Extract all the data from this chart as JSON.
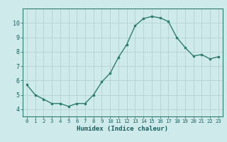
{
  "x": [
    0,
    1,
    2,
    3,
    4,
    5,
    6,
    7,
    8,
    9,
    10,
    11,
    12,
    13,
    14,
    15,
    16,
    17,
    18,
    19,
    20,
    21,
    22,
    23
  ],
  "y": [
    5.7,
    5.0,
    4.7,
    4.4,
    4.4,
    4.2,
    4.4,
    4.4,
    5.0,
    5.9,
    6.5,
    7.6,
    8.5,
    9.8,
    10.3,
    10.45,
    10.35,
    10.1,
    9.0,
    8.3,
    7.7,
    7.8,
    7.5,
    7.65
  ],
  "xlim": [
    -0.5,
    23.5
  ],
  "ylim": [
    3.5,
    11.0
  ],
  "yticks": [
    4,
    5,
    6,
    7,
    8,
    9,
    10
  ],
  "xticks": [
    0,
    1,
    2,
    3,
    4,
    5,
    6,
    7,
    8,
    9,
    10,
    11,
    12,
    13,
    14,
    15,
    16,
    17,
    18,
    19,
    20,
    21,
    22,
    23
  ],
  "xlabel": "Humidex (Indice chaleur)",
  "line_color": "#2e7d6e",
  "marker_color": "#2e7d6e",
  "bg_color": "#ceeaea",
  "grid_color_major": "#b8d4d4",
  "grid_color_minor": "#c8e0e0",
  "tick_label_color": "#1a5f5f",
  "axis_color": "#2e7d6e",
  "font_family": "monospace"
}
